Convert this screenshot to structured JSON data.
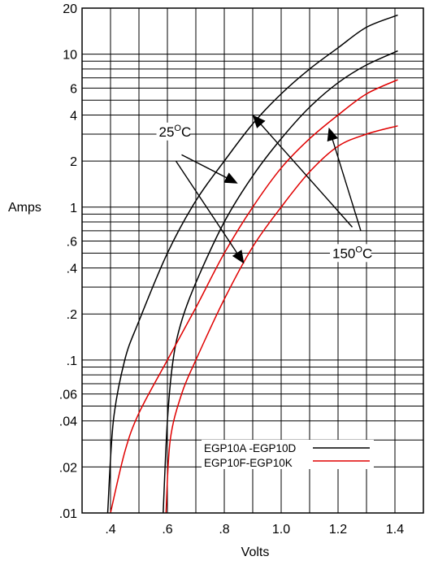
{
  "chart_data": {
    "type": "line",
    "xlabel": "Volts",
    "ylabel": "Amps",
    "scale": {
      "x": "linear",
      "y": "log"
    },
    "xlim": [
      0.3,
      1.5
    ],
    "ylim": [
      0.01,
      20
    ],
    "x_ticks": [
      {
        "value": 0.4,
        "label": ".4"
      },
      {
        "value": 0.6,
        "label": ".6"
      },
      {
        "value": 0.8,
        "label": ".8"
      },
      {
        "value": 1.0,
        "label": "1.0"
      },
      {
        "value": 1.2,
        "label": "1.2"
      },
      {
        "value": 1.4,
        "label": "1.4"
      }
    ],
    "y_ticks": [
      {
        "value": 20,
        "label": "20"
      },
      {
        "value": 10,
        "label": "10"
      },
      {
        "value": 6,
        "label": "6"
      },
      {
        "value": 4,
        "label": "4"
      },
      {
        "value": 2,
        "label": "2"
      },
      {
        "value": 1,
        "label": "1"
      },
      {
        "value": 0.6,
        "label": ".6"
      },
      {
        "value": 0.4,
        "label": ".4"
      },
      {
        "value": 0.2,
        "label": ".2"
      },
      {
        "value": 0.1,
        "label": ".1"
      },
      {
        "value": 0.06,
        "label": ".06"
      },
      {
        "value": 0.04,
        "label": ".04"
      },
      {
        "value": 0.02,
        "label": ".02"
      },
      {
        "value": 0.01,
        "label": ".01"
      }
    ],
    "grid": true,
    "grid_x": [
      0.3,
      0.4,
      0.5,
      0.6,
      0.7,
      0.8,
      0.9,
      1.0,
      1.1,
      1.2,
      1.3,
      1.4,
      1.5
    ],
    "grid_y": [
      20,
      10,
      9,
      8,
      7,
      6,
      5,
      4,
      3,
      2,
      1,
      0.9,
      0.8,
      0.7,
      0.6,
      0.5,
      0.4,
      0.3,
      0.2,
      0.1,
      0.09,
      0.08,
      0.07,
      0.06,
      0.05,
      0.04,
      0.03,
      0.02,
      0.01
    ],
    "legend": {
      "placement": "bottom-right",
      "entries": [
        {
          "label": "EGP10A -EGP10D",
          "color": "#000000"
        },
        {
          "label": "EGP10F-EGP10K",
          "color": "#e00000"
        }
      ]
    },
    "series": [
      {
        "group": "EGP10A -EGP10D",
        "temperature": "150",
        "color": "#000000",
        "points": [
          [
            0.39,
            0.01
          ],
          [
            0.41,
            0.04
          ],
          [
            0.45,
            0.1
          ],
          [
            0.5,
            0.18
          ],
          [
            0.6,
            0.5
          ],
          [
            0.7,
            1.1
          ],
          [
            0.8,
            2.0
          ],
          [
            0.9,
            3.5
          ],
          [
            1.0,
            5.5
          ],
          [
            1.1,
            8.0
          ],
          [
            1.2,
            11.0
          ],
          [
            1.3,
            15.0
          ],
          [
            1.41,
            18.0
          ]
        ]
      },
      {
        "group": "EGP10A -EGP10D",
        "temperature": "25",
        "color": "#000000",
        "points": [
          [
            0.585,
            0.01
          ],
          [
            0.6,
            0.04
          ],
          [
            0.62,
            0.1
          ],
          [
            0.65,
            0.18
          ],
          [
            0.7,
            0.32
          ],
          [
            0.8,
            0.8
          ],
          [
            0.9,
            1.6
          ],
          [
            1.0,
            2.8
          ],
          [
            1.1,
            4.5
          ],
          [
            1.2,
            6.5
          ],
          [
            1.3,
            8.5
          ],
          [
            1.41,
            10.5
          ]
        ]
      },
      {
        "group": "EGP10F-EGP10K",
        "temperature": "150",
        "color": "#e00000",
        "points": [
          [
            0.4,
            0.01
          ],
          [
            0.45,
            0.025
          ],
          [
            0.5,
            0.045
          ],
          [
            0.6,
            0.1
          ],
          [
            0.7,
            0.22
          ],
          [
            0.8,
            0.5
          ],
          [
            0.9,
            1.0
          ],
          [
            1.0,
            1.8
          ],
          [
            1.1,
            2.8
          ],
          [
            1.2,
            4.0
          ],
          [
            1.3,
            5.5
          ],
          [
            1.41,
            6.8
          ]
        ]
      },
      {
        "group": "EGP10F-EGP10K",
        "temperature": "25",
        "color": "#e00000",
        "points": [
          [
            0.595,
            0.01
          ],
          [
            0.61,
            0.03
          ],
          [
            0.65,
            0.06
          ],
          [
            0.7,
            0.1
          ],
          [
            0.8,
            0.25
          ],
          [
            0.9,
            0.55
          ],
          [
            1.0,
            1.0
          ],
          [
            1.1,
            1.7
          ],
          [
            1.2,
            2.5
          ],
          [
            1.3,
            3.0
          ],
          [
            1.41,
            3.4
          ]
        ]
      }
    ],
    "annotations": [
      {
        "text": "25",
        "sup": "O",
        "unit": "C",
        "anchor": [
          0.57,
          2.9
        ],
        "arrows": [
          {
            "from": [
              0.65,
              2.2
            ],
            "to": [
              0.84,
              1.45
            ]
          },
          {
            "from": [
              0.63,
              2.0
            ],
            "to": [
              0.865,
              0.44
            ]
          }
        ]
      },
      {
        "text": "150",
        "sup": "O",
        "unit": "C",
        "anchor": [
          1.18,
          0.465
        ],
        "arrows": [
          {
            "from": [
              1.25,
              0.74
            ],
            "to": [
              0.905,
              3.9
            ]
          },
          {
            "from": [
              1.28,
              0.7
            ],
            "to": [
              1.17,
              3.2
            ]
          }
        ]
      }
    ]
  }
}
